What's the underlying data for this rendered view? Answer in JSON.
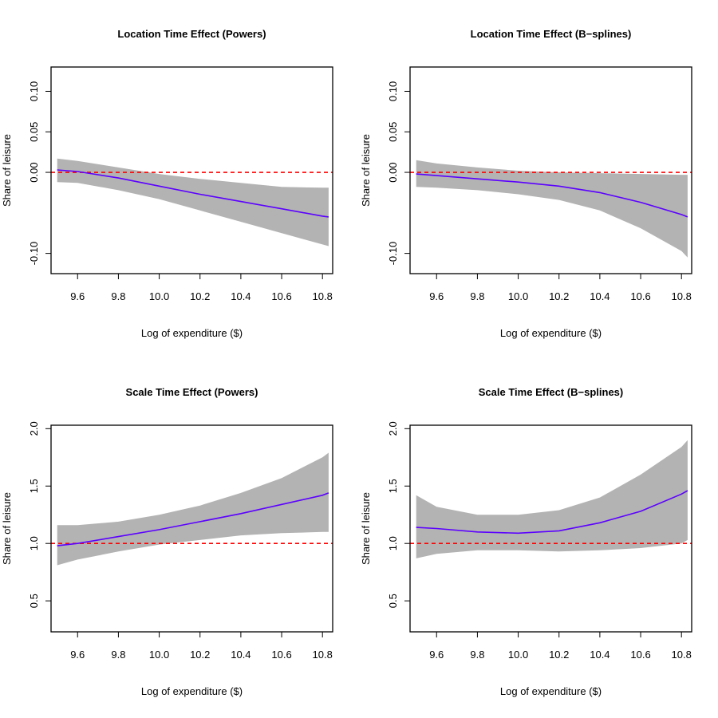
{
  "chart_data": [
    {
      "type": "line",
      "title": "Location Time Effect (Powers)",
      "xlabel": "Log of expenditure ($)",
      "ylabel": "Share of leisure",
      "xlim": [
        9.47,
        10.85
      ],
      "ylim": [
        -0.125,
        0.13
      ],
      "xticks": [
        9.6,
        9.8,
        10.0,
        10.2,
        10.4,
        10.6,
        10.8
      ],
      "xtick_labels": [
        "9.6",
        "9.8",
        "10.0",
        "10.2",
        "10.4",
        "10.6",
        "10.8"
      ],
      "yticks": [
        -0.1,
        0.0,
        0.05,
        0.1
      ],
      "ytick_labels": [
        "-0.10",
        "0.00",
        "0.05",
        "0.10"
      ],
      "reference_line": {
        "y": 0.0,
        "color": "#ff0000",
        "style": "dashed"
      },
      "band_color": "#b3b3b3",
      "line_color": "#5b00ff",
      "series": [
        {
          "x": [
            9.5,
            9.6,
            9.8,
            10.0,
            10.2,
            10.4,
            10.6,
            10.8,
            10.83
          ],
          "estimate": [
            0.003,
            0.001,
            -0.007,
            -0.017,
            -0.027,
            -0.036,
            -0.045,
            -0.054,
            -0.055
          ],
          "lower": [
            -0.012,
            -0.013,
            -0.022,
            -0.033,
            -0.047,
            -0.061,
            -0.075,
            -0.089,
            -0.091
          ],
          "upper": [
            0.017,
            0.014,
            0.006,
            -0.002,
            -0.008,
            -0.013,
            -0.018,
            -0.019,
            -0.019
          ]
        }
      ]
    },
    {
      "type": "line",
      "title": "Location Time Effect (B−splines)",
      "xlabel": "Log of expenditure ($)",
      "ylabel": "Share of leisure",
      "xlim": [
        9.47,
        10.85
      ],
      "ylim": [
        -0.125,
        0.13
      ],
      "xticks": [
        9.6,
        9.8,
        10.0,
        10.2,
        10.4,
        10.6,
        10.8
      ],
      "xtick_labels": [
        "9.6",
        "9.8",
        "10.0",
        "10.2",
        "10.4",
        "10.6",
        "10.8"
      ],
      "yticks": [
        -0.1,
        0.0,
        0.05,
        0.1
      ],
      "ytick_labels": [
        "-0.10",
        "0.00",
        "0.05",
        "0.10"
      ],
      "reference_line": {
        "y": 0.0,
        "color": "#ff0000",
        "style": "dashed"
      },
      "band_color": "#b3b3b3",
      "line_color": "#5b00ff",
      "series": [
        {
          "x": [
            9.5,
            9.6,
            9.8,
            10.0,
            10.2,
            10.4,
            10.6,
            10.8,
            10.83
          ],
          "estimate": [
            -0.002,
            -0.004,
            -0.008,
            -0.012,
            -0.017,
            -0.025,
            -0.037,
            -0.052,
            -0.055
          ],
          "lower": [
            -0.018,
            -0.019,
            -0.022,
            -0.027,
            -0.034,
            -0.047,
            -0.069,
            -0.097,
            -0.105
          ],
          "upper": [
            0.015,
            0.011,
            0.006,
            0.002,
            0.0,
            -0.001,
            -0.002,
            -0.003,
            -0.003
          ]
        }
      ]
    },
    {
      "type": "line",
      "title": "Scale Time Effect (Powers)",
      "xlabel": "Log of expenditure ($)",
      "ylabel": "Share of leisure",
      "xlim": [
        9.47,
        10.85
      ],
      "ylim": [
        0.23,
        2.03
      ],
      "xticks": [
        9.6,
        9.8,
        10.0,
        10.2,
        10.4,
        10.6,
        10.8
      ],
      "xtick_labels": [
        "9.6",
        "9.8",
        "10.0",
        "10.2",
        "10.4",
        "10.6",
        "10.8"
      ],
      "yticks": [
        0.5,
        1.0,
        1.5,
        2.0
      ],
      "ytick_labels": [
        "0.5",
        "1.0",
        "1.5",
        "2.0"
      ],
      "reference_line": {
        "y": 1.0,
        "color": "#ff0000",
        "style": "dashed"
      },
      "band_color": "#b3b3b3",
      "line_color": "#5b00ff",
      "series": [
        {
          "x": [
            9.5,
            9.6,
            9.8,
            10.0,
            10.2,
            10.4,
            10.6,
            10.8,
            10.83
          ],
          "estimate": [
            0.98,
            1.0,
            1.06,
            1.12,
            1.19,
            1.26,
            1.34,
            1.42,
            1.44
          ],
          "lower": [
            0.81,
            0.86,
            0.93,
            0.99,
            1.03,
            1.07,
            1.09,
            1.1,
            1.1
          ],
          "upper": [
            1.16,
            1.16,
            1.19,
            1.25,
            1.33,
            1.44,
            1.57,
            1.75,
            1.79
          ]
        }
      ]
    },
    {
      "type": "line",
      "title": "Scale Time Effect (B−splines)",
      "xlabel": "Log of expenditure ($)",
      "ylabel": "Share of leisure",
      "xlim": [
        9.47,
        10.85
      ],
      "ylim": [
        0.23,
        2.03
      ],
      "xticks": [
        9.6,
        9.8,
        10.0,
        10.2,
        10.4,
        10.6,
        10.8
      ],
      "xtick_labels": [
        "9.6",
        "9.8",
        "10.0",
        "10.2",
        "10.4",
        "10.6",
        "10.8"
      ],
      "yticks": [
        0.5,
        1.0,
        1.5,
        2.0
      ],
      "ytick_labels": [
        "0.5",
        "1.0",
        "1.5",
        "2.0"
      ],
      "reference_line": {
        "y": 1.0,
        "color": "#ff0000",
        "style": "dashed"
      },
      "band_color": "#b3b3b3",
      "line_color": "#5b00ff",
      "series": [
        {
          "x": [
            9.5,
            9.6,
            9.8,
            10.0,
            10.2,
            10.4,
            10.6,
            10.8,
            10.83
          ],
          "estimate": [
            1.14,
            1.13,
            1.1,
            1.09,
            1.11,
            1.18,
            1.28,
            1.43,
            1.46
          ],
          "lower": [
            0.87,
            0.91,
            0.94,
            0.94,
            0.93,
            0.94,
            0.96,
            1.0,
            1.03
          ],
          "upper": [
            1.42,
            1.32,
            1.25,
            1.25,
            1.29,
            1.4,
            1.6,
            1.84,
            1.9
          ]
        }
      ]
    }
  ]
}
